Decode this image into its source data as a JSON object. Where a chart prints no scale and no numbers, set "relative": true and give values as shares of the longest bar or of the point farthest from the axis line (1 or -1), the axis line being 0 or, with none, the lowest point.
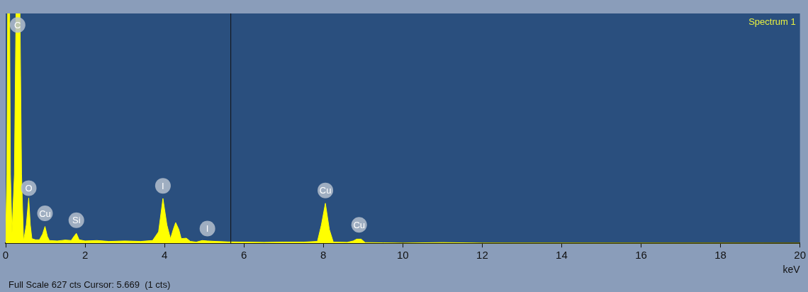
{
  "chart_data": {
    "type": "area",
    "title": "Spectrum 1",
    "xlabel": "keV",
    "relative": true,
    "color": "#ffff00",
    "x": [
      0,
      0.03,
      0.05,
      0.1,
      0.12,
      0.16,
      0.22,
      0.26,
      0.36,
      0.4,
      0.45,
      0.52,
      0.58,
      0.62,
      0.66,
      0.75,
      0.85,
      0.93,
      0.99,
      1.05,
      1.1,
      1.3,
      1.5,
      1.65,
      1.72,
      1.78,
      1.85,
      2.0,
      2.3,
      2.6,
      3.0,
      3.4,
      3.7,
      3.85,
      3.96,
      4.06,
      4.15,
      4.22,
      4.28,
      4.36,
      4.42,
      4.55,
      4.65,
      4.8,
      4.95,
      5.08,
      5.3,
      5.6,
      6.0,
      6.5,
      7.0,
      7.5,
      7.85,
      7.95,
      8.05,
      8.15,
      8.25,
      8.6,
      8.75,
      8.84,
      8.95,
      9.05,
      9.5,
      10,
      11,
      12,
      20
    ],
    "values": [
      0.02,
      0.3,
      1,
      1,
      0.3,
      0.045,
      0.3,
      1,
      1,
      0.3,
      0.01,
      0.08,
      0.197,
      0.08,
      0.02,
      0.015,
      0.015,
      0.04,
      0.073,
      0.03,
      0.012,
      0.01,
      0.014,
      0.012,
      0.03,
      0.043,
      0.015,
      0.01,
      0.012,
      0.008,
      0.01,
      0.008,
      0.012,
      0.05,
      0.195,
      0.08,
      0.02,
      0.06,
      0.09,
      0.06,
      0.02,
      0.022,
      0.008,
      0.005,
      0.012,
      0.01,
      0.008,
      0.006,
      0.005,
      0.004,
      0.005,
      0.005,
      0.008,
      0.08,
      0.174,
      0.06,
      0.005,
      0.004,
      0.01,
      0.018,
      0.018,
      0.003,
      0.002,
      0.001,
      0.003,
      0.001,
      0
    ],
    "xlim": [
      0,
      20
    ],
    "xticks": [
      0,
      2,
      4,
      6,
      8,
      10,
      12,
      14,
      16,
      18,
      20
    ],
    "grid": false,
    "legend": false,
    "marker": "none",
    "ref_lines": [
      {
        "axis": "x",
        "value": 5.669,
        "color": "#111111"
      }
    ],
    "annotations": [
      {
        "text": "C",
        "x": 0.3,
        "y": 0.95
      },
      {
        "text": "O",
        "x": 0.58,
        "y": 0.24
      },
      {
        "text": "Cu",
        "x": 0.99,
        "y": 0.13
      },
      {
        "text": "Si",
        "x": 1.78,
        "y": 0.1
      },
      {
        "text": "I",
        "x": 3.96,
        "y": 0.25
      },
      {
        "text": "I",
        "x": 5.08,
        "y": 0.064
      },
      {
        "text": "Cu",
        "x": 8.05,
        "y": 0.23
      },
      {
        "text": "Cu",
        "x": 8.9,
        "y": 0.08
      },
      "Full Scale 627 cts Cursor: 5.669  (1 cts)"
    ]
  }
}
